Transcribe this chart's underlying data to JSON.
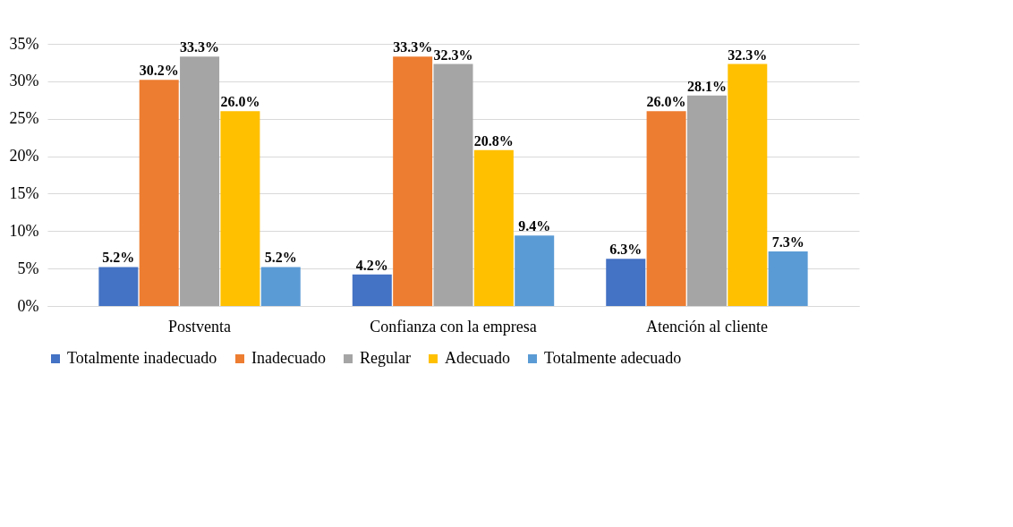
{
  "chart_data": {
    "type": "bar",
    "categories": [
      "Postventa",
      "Confianza con la empresa",
      "Atención al cliente"
    ],
    "series": [
      {
        "name": "Totalmente inadecuado",
        "color": "#4472c4",
        "values": [
          5.2,
          4.2,
          6.3
        ],
        "value_labels": [
          "5.2%",
          "4.2%",
          "6.3%"
        ]
      },
      {
        "name": "Inadecuado",
        "color": "#ed7d31",
        "values": [
          30.2,
          33.3,
          26.0
        ],
        "value_labels": [
          "30.2%",
          "33.3%",
          "26.0%"
        ]
      },
      {
        "name": "Regular",
        "color": "#a5a5a5",
        "values": [
          33.3,
          32.3,
          28.1
        ],
        "value_labels": [
          "33.3%",
          "32.3%",
          "28.1%"
        ]
      },
      {
        "name": "Adecuado",
        "color": "#ffc000",
        "values": [
          26.0,
          20.8,
          32.3
        ],
        "value_labels": [
          "26.0%",
          "20.8%",
          "32.3%"
        ]
      },
      {
        "name": "Totalmente adecuado",
        "color": "#5b9bd5",
        "values": [
          5.2,
          9.4,
          7.3
        ],
        "value_labels": [
          "5.2%",
          "9.4%",
          "7.3%"
        ]
      }
    ],
    "ylim": [
      0,
      35
    ],
    "yticks": [
      {
        "value": 0,
        "label": "0%"
      },
      {
        "value": 5,
        "label": "5%"
      },
      {
        "value": 10,
        "label": "10%"
      },
      {
        "value": 15,
        "label": "15%"
      },
      {
        "value": 20,
        "label": "20%"
      },
      {
        "value": 25,
        "label": "25%"
      },
      {
        "value": 30,
        "label": "30%"
      },
      {
        "value": 35,
        "label": "35%"
      }
    ],
    "grid": "y",
    "legend": "bottom"
  }
}
